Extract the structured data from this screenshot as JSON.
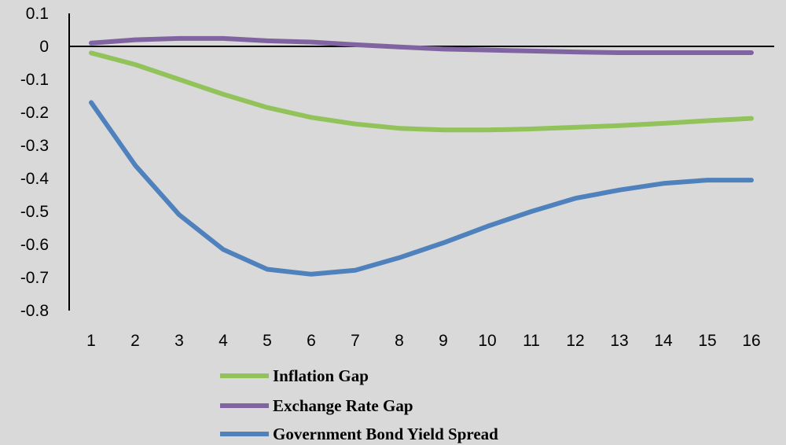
{
  "chart_data": {
    "type": "line",
    "title": "",
    "xlabel": "",
    "ylabel": "",
    "x": [
      1,
      2,
      3,
      4,
      5,
      6,
      7,
      8,
      9,
      10,
      11,
      12,
      13,
      14,
      15,
      16
    ],
    "ylim": [
      -0.8,
      0.1
    ],
    "yticks": [
      "0.1",
      "0",
      "-0.1",
      "-0.2",
      "-0.3",
      "-0.4",
      "-0.5",
      "-0.6",
      "-0.7",
      "-0.8"
    ],
    "xticks": [
      "1",
      "2",
      "3",
      "4",
      "5",
      "6",
      "7",
      "8",
      "9",
      "10",
      "11",
      "12",
      "13",
      "14",
      "15",
      "16"
    ],
    "grid": false,
    "legend_position": "bottom",
    "series": [
      {
        "name": "Inflation Gap",
        "color": "#92c25a",
        "values": [
          -0.02,
          -0.055,
          -0.1,
          -0.145,
          -0.185,
          -0.215,
          -0.235,
          -0.248,
          -0.253,
          -0.253,
          -0.25,
          -0.245,
          -0.24,
          -0.233,
          -0.225,
          -0.218
        ]
      },
      {
        "name": "Exchange Rate Gap",
        "color": "#8064a2",
        "values": [
          0.01,
          0.02,
          0.024,
          0.024,
          0.017,
          0.013,
          0.005,
          -0.002,
          -0.008,
          -0.011,
          -0.014,
          -0.017,
          -0.019,
          -0.019,
          -0.019,
          -0.019
        ]
      },
      {
        "name": "Government Bond Yield Spread",
        "color": "#4f81bd",
        "values": [
          -0.17,
          -0.36,
          -0.51,
          -0.615,
          -0.675,
          -0.69,
          -0.678,
          -0.64,
          -0.595,
          -0.545,
          -0.5,
          -0.46,
          -0.435,
          -0.415,
          -0.405,
          -0.405
        ]
      }
    ]
  }
}
